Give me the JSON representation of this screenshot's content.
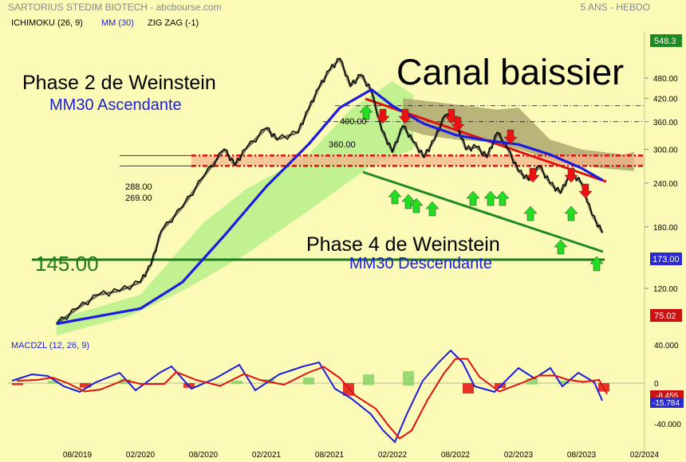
{
  "header": {
    "title": "SARTORIUS STEDIM BIOTECH - abcbourse.com",
    "period": "5 ANS - HEBDO"
  },
  "legend": {
    "ichimoku": "ICHIMOKU (26, 9)",
    "mm": "MM (30)",
    "zigzag": "ZIG ZAG (-1)",
    "macd": "MACDZL (12, 26, 9)"
  },
  "annotations": {
    "phase2_title": "Phase 2 de Weinstein",
    "phase2_sub": "MM30 Ascendante",
    "channel": "Canal baissier",
    "phase4_title": "Phase 4 de Weinstein",
    "phase4_sub": "MM30 Descendante",
    "support": "145.00",
    "lvl400": "400.00",
    "lvl360": "360.00",
    "lvl288": "288.00",
    "lvl269": "269.00"
  },
  "badges": {
    "high": "548.3",
    "last": "173.00",
    "low": "75.02",
    "macd_signal": "-8.455",
    "macd_line": "-15.784"
  },
  "colors": {
    "background": "#fbfbb7",
    "price": "#000000",
    "mm30": "#1c1ce0",
    "channel_upper": "#e01010",
    "channel_lower": "#1f8a1f",
    "support": "#1f7a1f",
    "cloud_bull": "#b6ef8a",
    "cloud_bear": "#a9a46a",
    "arrow_up": "#22dd22",
    "arrow_down": "#ee1111",
    "badge_green": "#1f8a1f",
    "badge_blue": "#2a2ad0",
    "badge_red": "#cc1111"
  },
  "chart_data": [
    {
      "type": "line",
      "title": "SARTORIUS STEDIM BIOTECH",
      "y_scale": "log",
      "y_ticks": [
        120,
        180,
        240,
        300,
        360,
        420,
        480
      ],
      "y_tick_labels": [
        "120.00",
        "180.00",
        "240.00",
        "300.00",
        "360.00",
        "420.00",
        "480.00"
      ],
      "x_ticks": [
        "08/2019",
        "02/2020",
        "08/2020",
        "02/2021",
        "08/2021",
        "02/2022",
        "08/2022",
        "02/2023",
        "08/2023",
        "02/2024"
      ],
      "series": [
        {
          "name": "Cours",
          "points": [
            [
              "06/2019",
              95
            ],
            [
              "08/2019",
              105
            ],
            [
              "10/2019",
              115
            ],
            [
              "12/2019",
              118
            ],
            [
              "02/2020",
              125
            ],
            [
              "03/2020",
              140
            ],
            [
              "04/2020",
              175
            ],
            [
              "06/2020",
              205
            ],
            [
              "08/2020",
              250
            ],
            [
              "10/2020",
              300
            ],
            [
              "11/2020",
              270
            ],
            [
              "12/2020",
              300
            ],
            [
              "02/2021",
              345
            ],
            [
              "03/2021",
              320
            ],
            [
              "05/2021",
              335
            ],
            [
              "06/2021",
              390
            ],
            [
              "07/2021",
              450
            ],
            [
              "08/2021",
              505
            ],
            [
              "09/2021",
              545
            ],
            [
              "10/2021",
              455
            ],
            [
              "11/2021",
              490
            ],
            [
              "12/2021",
              440
            ],
            [
              "01/2022",
              340
            ],
            [
              "02/2022",
              295
            ],
            [
              "03/2022",
              350
            ],
            [
              "04/2022",
              315
            ],
            [
              "05/2022",
              285
            ],
            [
              "06/2022",
              320
            ],
            [
              "07/2022",
              375
            ],
            [
              "08/2022",
              360
            ],
            [
              "09/2022",
              300
            ],
            [
              "10/2022",
              305
            ],
            [
              "11/2022",
              285
            ],
            [
              "12/2022",
              335
            ],
            [
              "01/2023",
              300
            ],
            [
              "02/2023",
              260
            ],
            [
              "03/2023",
              245
            ],
            [
              "04/2023",
              268
            ],
            [
              "05/2023",
              240
            ],
            [
              "06/2023",
              225
            ],
            [
              "07/2023",
              258
            ],
            [
              "08/2023",
              240
            ],
            [
              "09/2023",
              195
            ],
            [
              "10/2023",
              173
            ]
          ]
        },
        {
          "name": "MM (30)",
          "points": [
            [
              "06/2019",
              95
            ],
            [
              "02/2020",
              105
            ],
            [
              "06/2020",
              125
            ],
            [
              "10/2020",
              170
            ],
            [
              "02/2021",
              235
            ],
            [
              "06/2021",
              310
            ],
            [
              "09/2021",
              395
            ],
            [
              "12/2021",
              445
            ],
            [
              "02/2022",
              400
            ],
            [
              "05/2022",
              355
            ],
            [
              "08/2022",
              330
            ],
            [
              "11/2022",
              318
            ],
            [
              "02/2023",
              310
            ],
            [
              "05/2023",
              290
            ],
            [
              "08/2023",
              265
            ],
            [
              "10/2023",
              245
            ]
          ]
        }
      ],
      "levels": [
        145,
        269,
        288,
        360,
        400
      ]
    },
    {
      "type": "line",
      "title": "MACDZL (12, 26, 9)",
      "y_ticks": [
        40,
        0,
        -40
      ],
      "y_tick_labels": [
        "40.000",
        "0",
        "-40.000"
      ],
      "series": [
        {
          "name": "MACD",
          "last": -15.784
        },
        {
          "name": "Signal",
          "last": -8.455
        }
      ]
    }
  ]
}
